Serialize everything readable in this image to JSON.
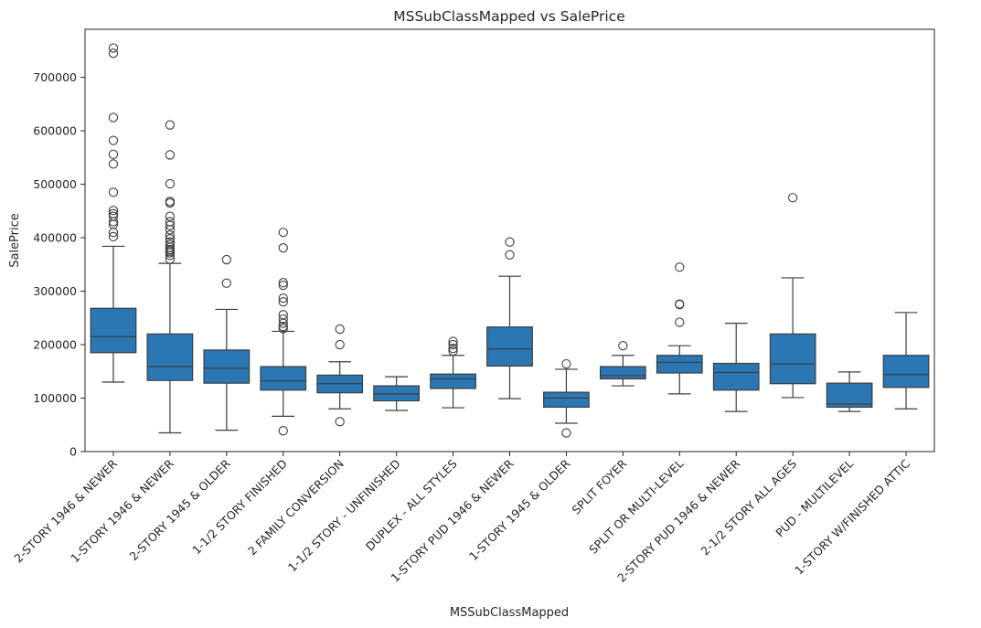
{
  "chart_data": {
    "type": "box",
    "title": "MSSubClassMapped vs SalePrice",
    "xlabel": "MSSubClassMapped",
    "ylabel": "SalePrice",
    "ylim": [
      0,
      790000
    ],
    "yticks": [
      0,
      100000,
      200000,
      300000,
      400000,
      500000,
      600000,
      700000
    ],
    "grid": false,
    "box_color": "#2b77b4",
    "line_color": "#3d3d3d",
    "categories": [
      "2-STORY 1946 & NEWER",
      "1-STORY 1946 & NEWER",
      "2-STORY 1945 & OLDER",
      "1-1/2 STORY FINISHED",
      "2 FAMILY CONVERSION",
      "1-1/2 STORY - UNFINISHED",
      "DUPLEX - ALL STYLES",
      "1-STORY PUD 1946 & NEWER",
      "1-STORY 1945 & OLDER",
      "SPLIT FOYER",
      "SPLIT OR MULTI-LEVEL",
      "2-STORY PUD 1946 & NEWER",
      "2-1/2 STORY ALL AGES",
      "PUD - MULTILEVEL",
      "1-STORY W/FINISHED ATTIC"
    ],
    "boxes": [
      {
        "whisker_low": 130000,
        "q1": 185000,
        "median": 215000,
        "q3": 268000,
        "whisker_high": 384000,
        "outliers": [
          755000,
          745000,
          625000,
          582000,
          556000,
          538000,
          485000,
          451000,
          445000,
          440000,
          430000,
          425000,
          410000,
          402000
        ]
      },
      {
        "whisker_low": 35000,
        "q1": 133000,
        "median": 159000,
        "q3": 220000,
        "whisker_high": 352000,
        "outliers": [
          611000,
          555000,
          501000,
          468000,
          465000,
          440000,
          430000,
          423000,
          415000,
          405000,
          398000,
          392000,
          387000,
          382000,
          378000,
          375000,
          372000,
          367000,
          360000
        ]
      },
      {
        "whisker_low": 40000,
        "q1": 128000,
        "median": 156000,
        "q3": 190000,
        "whisker_high": 266000,
        "outliers": [
          359000,
          315000
        ]
      },
      {
        "whisker_low": 66000,
        "q1": 115000,
        "median": 132000,
        "q3": 159000,
        "whisker_high": 225000,
        "outliers": [
          410000,
          381000,
          316000,
          311000,
          287000,
          280000,
          256000,
          248000,
          240000,
          234000,
          230000,
          39000
        ]
      },
      {
        "whisker_low": 80000,
        "q1": 110000,
        "median": 127000,
        "q3": 143000,
        "whisker_high": 168000,
        "outliers": [
          229000,
          200000,
          56000
        ]
      },
      {
        "whisker_low": 77000,
        "q1": 95000,
        "median": 108000,
        "q3": 123000,
        "whisker_high": 140000,
        "outliers": []
      },
      {
        "whisker_low": 82000,
        "q1": 118000,
        "median": 136000,
        "q3": 145000,
        "whisker_high": 180000,
        "outliers": [
          206000,
          200000,
          193000,
          188000
        ]
      },
      {
        "whisker_low": 99000,
        "q1": 160000,
        "median": 192000,
        "q3": 233000,
        "whisker_high": 328000,
        "outliers": [
          392000,
          368000
        ]
      },
      {
        "whisker_low": 53000,
        "q1": 83000,
        "median": 100000,
        "q3": 111000,
        "whisker_high": 154000,
        "outliers": [
          164000,
          35000
        ]
      },
      {
        "whisker_low": 123000,
        "q1": 136000,
        "median": 142000,
        "q3": 159000,
        "whisker_high": 180000,
        "outliers": [
          198000
        ]
      },
      {
        "whisker_low": 108000,
        "q1": 147000,
        "median": 167000,
        "q3": 180000,
        "whisker_high": 198000,
        "outliers": [
          345000,
          276000,
          275000,
          242000
        ]
      },
      {
        "whisker_low": 75000,
        "q1": 115000,
        "median": 148000,
        "q3": 165000,
        "whisker_high": 240000,
        "outliers": []
      },
      {
        "whisker_low": 101000,
        "q1": 127000,
        "median": 164000,
        "q3": 220000,
        "whisker_high": 325000,
        "outliers": [
          475000
        ]
      },
      {
        "whisker_low": 75000,
        "q1": 83000,
        "median": 89000,
        "q3": 128000,
        "whisker_high": 149000,
        "outliers": []
      },
      {
        "whisker_low": 80000,
        "q1": 120000,
        "median": 144000,
        "q3": 180000,
        "whisker_high": 260000,
        "outliers": []
      }
    ]
  }
}
